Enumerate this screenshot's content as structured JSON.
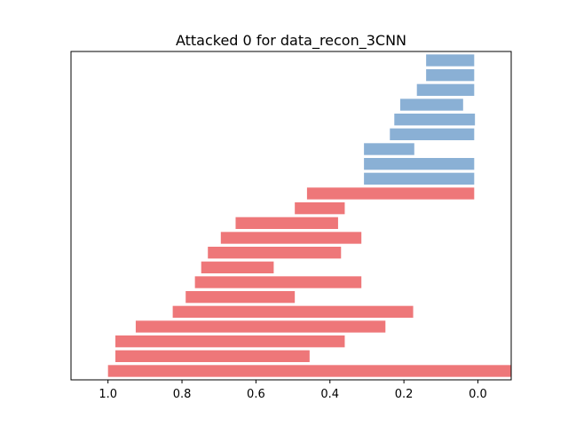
{
  "chart_data": {
    "type": "bar",
    "orientation": "horizontal-floating",
    "title": "Attacked 0 for data_recon_3CNN",
    "xlabel": "",
    "ylabel": "",
    "xlim": [
      1.1,
      -0.09
    ],
    "x_inverted": true,
    "xticks": [
      1.0,
      0.8,
      0.6,
      0.4,
      0.2,
      0.0
    ],
    "xtick_labels": [
      "1.0",
      "0.8",
      "0.6",
      "0.4",
      "0.2",
      "0.0"
    ],
    "yticks_visible": false,
    "grid": false,
    "legend": null,
    "colors": {
      "blue": "#8ab0d5",
      "red": "#ee7779"
    },
    "bars": [
      {
        "start": 1.0,
        "end": -0.09,
        "color": "red"
      },
      {
        "start": 0.98,
        "end": 0.455,
        "color": "red"
      },
      {
        "start": 0.98,
        "end": 0.36,
        "color": "red"
      },
      {
        "start": 0.925,
        "end": 0.25,
        "color": "red"
      },
      {
        "start": 0.825,
        "end": 0.175,
        "color": "red"
      },
      {
        "start": 0.79,
        "end": 0.495,
        "color": "red"
      },
      {
        "start": 0.765,
        "end": 0.315,
        "color": "red"
      },
      {
        "start": 0.748,
        "end": 0.552,
        "color": "red"
      },
      {
        "start": 0.73,
        "end": 0.37,
        "color": "red"
      },
      {
        "start": 0.695,
        "end": 0.315,
        "color": "red"
      },
      {
        "start": 0.655,
        "end": 0.378,
        "color": "red"
      },
      {
        "start": 0.495,
        "end": 0.36,
        "color": "red"
      },
      {
        "start": 0.462,
        "end": 0.01,
        "color": "red"
      },
      {
        "start": 0.308,
        "end": 0.01,
        "color": "blue"
      },
      {
        "start": 0.308,
        "end": 0.01,
        "color": "blue"
      },
      {
        "start": 0.308,
        "end": 0.172,
        "color": "blue"
      },
      {
        "start": 0.238,
        "end": 0.01,
        "color": "blue"
      },
      {
        "start": 0.226,
        "end": 0.008,
        "color": "blue"
      },
      {
        "start": 0.21,
        "end": 0.04,
        "color": "blue"
      },
      {
        "start": 0.165,
        "end": 0.01,
        "color": "blue"
      },
      {
        "start": 0.14,
        "end": 0.01,
        "color": "blue"
      },
      {
        "start": 0.14,
        "end": 0.01,
        "color": "blue"
      }
    ]
  }
}
